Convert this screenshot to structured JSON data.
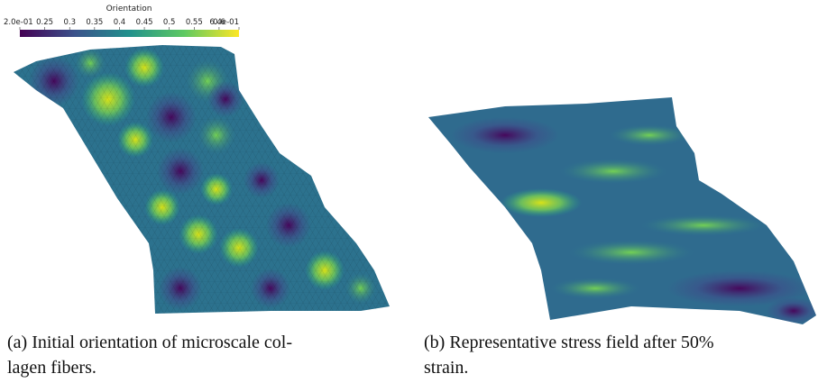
{
  "colorbar": {
    "title": "Orientation",
    "range": [
      0.2,
      0.64
    ],
    "ticks": [
      {
        "value": 0.2,
        "label": "2.0e-01"
      },
      0.25,
      0.3,
      0.35,
      0.4,
      0.45,
      0.5,
      0.55,
      0.6,
      {
        "value": 0.64,
        "label": "6.4e-01"
      }
    ]
  },
  "panels": [
    {
      "caption_lines": [
        "(a) Initial orientation of microscale col-",
        "lagen fibers."
      ]
    },
    {
      "caption_lines": [
        "(b) Representative stress field after 50%",
        "strain."
      ]
    }
  ]
}
